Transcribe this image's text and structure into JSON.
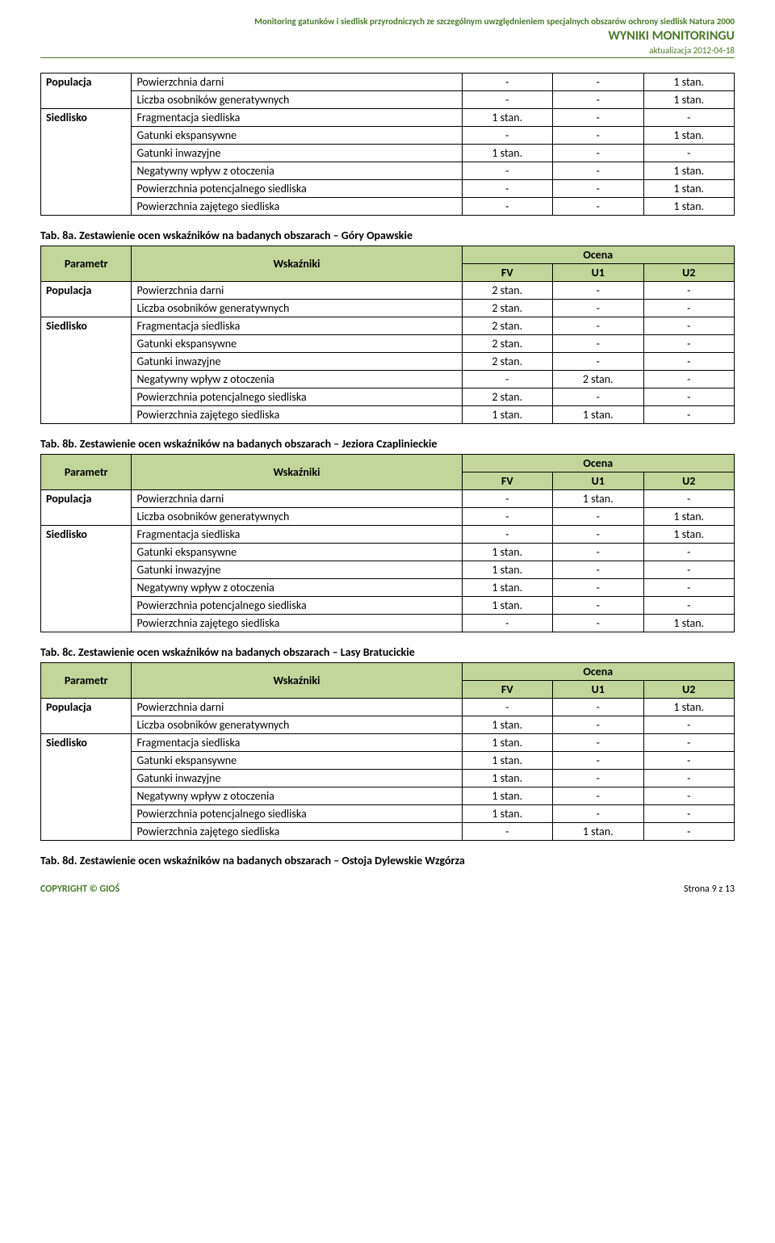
{
  "header": {
    "line1": "Monitoring gatunków i siedlisk przyrodniczych ze szczególnym uwzględnieniem specjalnych obszarów ochrony siedlisk Natura 2000",
    "line2": "WYNIKI MONITORINGU",
    "line3": "aktualizacja 2012-04-18"
  },
  "labels": {
    "parametr": "Parametr",
    "wskazniki": "Wskaźniki",
    "ocena": "Ocena",
    "fv": "FV",
    "u1": "U1",
    "u2": "U2",
    "populacja": "Populacja",
    "siedlisko": "Siedlisko"
  },
  "table0": {
    "rows": [
      {
        "param": "Populacja",
        "w": "Powierzchnia darni",
        "fv": "-",
        "u1": "-",
        "u2": "1 stan."
      },
      {
        "param": "",
        "w": "Liczba osobników generatywnych",
        "fv": "-",
        "u1": "-",
        "u2": "1 stan."
      },
      {
        "param": "Siedlisko",
        "w": "Fragmentacja siedliska",
        "fv": "1 stan.",
        "u1": "-",
        "u2": "-"
      },
      {
        "param": "",
        "w": "Gatunki ekspansywne",
        "fv": "-",
        "u1": "-",
        "u2": "1 stan."
      },
      {
        "param": "",
        "w": "Gatunki inwazyjne",
        "fv": "1 stan.",
        "u1": "-",
        "u2": "-"
      },
      {
        "param": "",
        "w": "Negatywny wpływ z otoczenia",
        "fv": "-",
        "u1": "-",
        "u2": "1 stan."
      },
      {
        "param": "",
        "w": "Powierzchnia potencjalnego siedliska",
        "fv": "-",
        "u1": "-",
        "u2": "1 stan."
      },
      {
        "param": "",
        "w": "Powierzchnia zajętego siedliska",
        "fv": "-",
        "u1": "-",
        "u2": "1 stan."
      }
    ]
  },
  "caption8a": "Tab. 8a. Zestawienie ocen wskaźników na badanych obszarach – Góry Opawskie",
  "table8a": {
    "rows": [
      {
        "param": "Populacja",
        "w": "Powierzchnia darni",
        "fv": "2 stan.",
        "u1": "-",
        "u2": "-"
      },
      {
        "param": "",
        "w": "Liczba osobników generatywnych",
        "fv": "2 stan.",
        "u1": "-",
        "u2": "-"
      },
      {
        "param": "Siedlisko",
        "w": "Fragmentacja siedliska",
        "fv": "2 stan.",
        "u1": "-",
        "u2": "-"
      },
      {
        "param": "",
        "w": "Gatunki ekspansywne",
        "fv": "2 stan.",
        "u1": "-",
        "u2": "-"
      },
      {
        "param": "",
        "w": "Gatunki inwazyjne",
        "fv": "2 stan.",
        "u1": "-",
        "u2": "-"
      },
      {
        "param": "",
        "w": "Negatywny wpływ z otoczenia",
        "fv": "-",
        "u1": "2 stan.",
        "u2": "-"
      },
      {
        "param": "",
        "w": "Powierzchnia potencjalnego siedliska",
        "fv": "2 stan.",
        "u1": "-",
        "u2": "-"
      },
      {
        "param": "",
        "w": "Powierzchnia zajętego siedliska",
        "fv": "1 stan.",
        "u1": "1 stan.",
        "u2": "-"
      }
    ]
  },
  "caption8b": "Tab. 8b. Zestawienie ocen wskaźników na badanych obszarach – Jeziora Czaplinieckie",
  "table8b": {
    "rows": [
      {
        "param": "Populacja",
        "w": "Powierzchnia darni",
        "fv": "-",
        "u1": "1 stan.",
        "u2": "-"
      },
      {
        "param": "",
        "w": "Liczba osobników generatywnych",
        "fv": "-",
        "u1": "-",
        "u2": "1 stan."
      },
      {
        "param": "Siedlisko",
        "w": "Fragmentacja siedliska",
        "fv": "-",
        "u1": "-",
        "u2": "1 stan."
      },
      {
        "param": "",
        "w": "Gatunki ekspansywne",
        "fv": "1 stan.",
        "u1": "-",
        "u2": "-"
      },
      {
        "param": "",
        "w": "Gatunki inwazyjne",
        "fv": "1 stan.",
        "u1": "-",
        "u2": "-"
      },
      {
        "param": "",
        "w": "Negatywny wpływ z otoczenia",
        "fv": "1 stan.",
        "u1": "-",
        "u2": "-"
      },
      {
        "param": "",
        "w": "Powierzchnia potencjalnego siedliska",
        "fv": "1 stan.",
        "u1": "-",
        "u2": "-"
      },
      {
        "param": "",
        "w": "Powierzchnia zajętego siedliska",
        "fv": "-",
        "u1": "-",
        "u2": "1 stan."
      }
    ]
  },
  "caption8c": "Tab. 8c. Zestawienie ocen wskaźników na badanych obszarach – Lasy Bratucickie",
  "table8c": {
    "rows": [
      {
        "param": "Populacja",
        "w": "Powierzchnia darni",
        "fv": "-",
        "u1": "-",
        "u2": "1 stan."
      },
      {
        "param": "",
        "w": "Liczba osobników generatywnych",
        "fv": "1 stan.",
        "u1": "-",
        "u2": "-"
      },
      {
        "param": "Siedlisko",
        "w": "Fragmentacja siedliska",
        "fv": "1 stan.",
        "u1": "-",
        "u2": "-"
      },
      {
        "param": "",
        "w": "Gatunki ekspansywne",
        "fv": "1 stan.",
        "u1": "-",
        "u2": "-"
      },
      {
        "param": "",
        "w": "Gatunki inwazyjne",
        "fv": "1 stan.",
        "u1": "-",
        "u2": "-"
      },
      {
        "param": "",
        "w": "Negatywny wpływ z otoczenia",
        "fv": "1 stan.",
        "u1": "-",
        "u2": "-"
      },
      {
        "param": "",
        "w": "Powierzchnia potencjalnego siedliska",
        "fv": "1 stan.",
        "u1": "-",
        "u2": "-"
      },
      {
        "param": "",
        "w": "Powierzchnia zajętego siedliska",
        "fv": "-",
        "u1": "1 stan.",
        "u2": "-"
      }
    ]
  },
  "caption8d": "Tab. 8d. Zestawienie ocen wskaźników na badanych obszarach – Ostoja Dylewskie Wzgórza",
  "footer": {
    "copyright": "COPYRIGHT © GIOŚ",
    "page": "Strona 9 z 13"
  }
}
